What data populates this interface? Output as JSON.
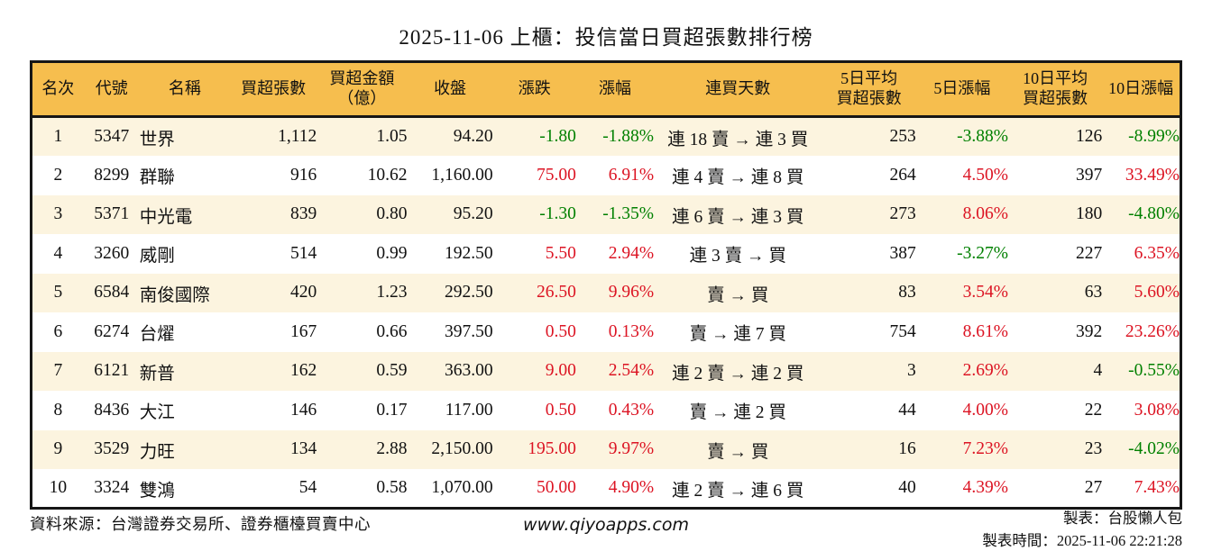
{
  "title": "2025-11-06 上櫃：投信當日買超張數排行榜",
  "colors": {
    "header_bg": "#f6be4e",
    "row_alt_bg": "#fcf4df",
    "up_red": "#dc1423",
    "down_green": "#008000",
    "border": "#161616"
  },
  "table": {
    "columns": [
      {
        "key": "rank",
        "label": "名次"
      },
      {
        "key": "code",
        "label": "代號"
      },
      {
        "key": "name",
        "label": "名稱"
      },
      {
        "key": "net_buy",
        "label": "買超張數"
      },
      {
        "key": "amount",
        "label": "買超金額\n（億）"
      },
      {
        "key": "close",
        "label": "收盤"
      },
      {
        "key": "change",
        "label": "漲跌"
      },
      {
        "key": "change_pct",
        "label": "漲幅"
      },
      {
        "key": "streak",
        "label": "連買天數"
      },
      {
        "key": "avg5",
        "label": "5日平均\n買超張數"
      },
      {
        "key": "pct5",
        "label": "5日漲幅"
      },
      {
        "key": "avg10",
        "label": "10日平均\n買超張數"
      },
      {
        "key": "pct10",
        "label": "10日漲幅"
      }
    ],
    "rows": [
      {
        "rank": "1",
        "code": "5347",
        "name": "世界",
        "net_buy": "1,112",
        "amount": "1.05",
        "close": "94.20",
        "change": "-1.80",
        "change_pct": "-1.88%",
        "change_dir": "down",
        "streak": "連 18 賣 → 連 3 買",
        "avg5": "253",
        "pct5": "-3.88%",
        "pct5_dir": "down",
        "avg10": "126",
        "pct10": "-8.99%",
        "pct10_dir": "down"
      },
      {
        "rank": "2",
        "code": "8299",
        "name": "群聯",
        "net_buy": "916",
        "amount": "10.62",
        "close": "1,160.00",
        "change": "75.00",
        "change_pct": "6.91%",
        "change_dir": "up",
        "streak": "連 4 賣 → 連 8 買",
        "avg5": "264",
        "pct5": "4.50%",
        "pct5_dir": "up",
        "avg10": "397",
        "pct10": "33.49%",
        "pct10_dir": "up"
      },
      {
        "rank": "3",
        "code": "5371",
        "name": "中光電",
        "net_buy": "839",
        "amount": "0.80",
        "close": "95.20",
        "change": "-1.30",
        "change_pct": "-1.35%",
        "change_dir": "down",
        "streak": "連 6 賣 → 連 3 買",
        "avg5": "273",
        "pct5": "8.06%",
        "pct5_dir": "up",
        "avg10": "180",
        "pct10": "-4.80%",
        "pct10_dir": "down"
      },
      {
        "rank": "4",
        "code": "3260",
        "name": "威剛",
        "net_buy": "514",
        "amount": "0.99",
        "close": "192.50",
        "change": "5.50",
        "change_pct": "2.94%",
        "change_dir": "up",
        "streak": "連 3 賣 → 買",
        "avg5": "387",
        "pct5": "-3.27%",
        "pct5_dir": "down",
        "avg10": "227",
        "pct10": "6.35%",
        "pct10_dir": "up"
      },
      {
        "rank": "5",
        "code": "6584",
        "name": "南俊國際",
        "net_buy": "420",
        "amount": "1.23",
        "close": "292.50",
        "change": "26.50",
        "change_pct": "9.96%",
        "change_dir": "up",
        "streak": "賣 → 買",
        "avg5": "83",
        "pct5": "3.54%",
        "pct5_dir": "up",
        "avg10": "63",
        "pct10": "5.60%",
        "pct10_dir": "up"
      },
      {
        "rank": "6",
        "code": "6274",
        "name": "台燿",
        "net_buy": "167",
        "amount": "0.66",
        "close": "397.50",
        "change": "0.50",
        "change_pct": "0.13%",
        "change_dir": "up",
        "streak": "賣 → 連 7 買",
        "avg5": "754",
        "pct5": "8.61%",
        "pct5_dir": "up",
        "avg10": "392",
        "pct10": "23.26%",
        "pct10_dir": "up"
      },
      {
        "rank": "7",
        "code": "6121",
        "name": "新普",
        "net_buy": "162",
        "amount": "0.59",
        "close": "363.00",
        "change": "9.00",
        "change_pct": "2.54%",
        "change_dir": "up",
        "streak": "連 2 賣 → 連 2 買",
        "avg5": "3",
        "pct5": "2.69%",
        "pct5_dir": "up",
        "avg10": "4",
        "pct10": "-0.55%",
        "pct10_dir": "down"
      },
      {
        "rank": "8",
        "code": "8436",
        "name": "大江",
        "net_buy": "146",
        "amount": "0.17",
        "close": "117.00",
        "change": "0.50",
        "change_pct": "0.43%",
        "change_dir": "up",
        "streak": "賣 → 連 2 買",
        "avg5": "44",
        "pct5": "4.00%",
        "pct5_dir": "up",
        "avg10": "22",
        "pct10": "3.08%",
        "pct10_dir": "up"
      },
      {
        "rank": "9",
        "code": "3529",
        "name": "力旺",
        "net_buy": "134",
        "amount": "2.88",
        "close": "2,150.00",
        "change": "195.00",
        "change_pct": "9.97%",
        "change_dir": "up",
        "streak": "賣 → 買",
        "avg5": "16",
        "pct5": "7.23%",
        "pct5_dir": "up",
        "avg10": "23",
        "pct10": "-4.02%",
        "pct10_dir": "down"
      },
      {
        "rank": "10",
        "code": "3324",
        "name": "雙鴻",
        "net_buy": "54",
        "amount": "0.58",
        "close": "1,070.00",
        "change": "50.00",
        "change_pct": "4.90%",
        "change_dir": "up",
        "streak": "連 2 賣 → 連 6 買",
        "avg5": "40",
        "pct5": "4.39%",
        "pct5_dir": "up",
        "avg10": "27",
        "pct10": "7.43%",
        "pct10_dir": "up"
      }
    ]
  },
  "footer": {
    "source": "資料來源：台灣證券交易所、證券櫃檯買賣中心",
    "site": "www.qiyoapps.com",
    "maker": "製表：台股懶人包",
    "made_time": "製表時間：2025-11-06 22:21:28"
  }
}
